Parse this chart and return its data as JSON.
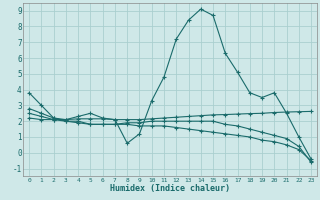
{
  "xlabel": "Humidex (Indice chaleur)",
  "background_color": "#cfe8e8",
  "line_color": "#1a6b6b",
  "grid_color": "#aacfcf",
  "xlim": [
    -0.5,
    23.5
  ],
  "ylim": [
    -1.5,
    9.5
  ],
  "xticks": [
    0,
    1,
    2,
    3,
    4,
    5,
    6,
    7,
    8,
    9,
    10,
    11,
    12,
    13,
    14,
    15,
    16,
    17,
    18,
    19,
    20,
    21,
    22,
    23
  ],
  "yticks": [
    -1,
    0,
    1,
    2,
    3,
    4,
    5,
    6,
    7,
    8,
    9
  ],
  "series": [
    {
      "x": [
        0,
        1,
        2,
        3,
        4,
        5,
        6,
        7,
        8,
        9,
        10,
        11,
        12,
        13,
        14,
        15,
        16,
        17,
        18,
        19,
        20,
        21,
        22,
        23
      ],
      "y": [
        3.8,
        3.0,
        2.2,
        2.1,
        2.3,
        2.5,
        2.2,
        2.1,
        0.6,
        1.2,
        3.3,
        4.8,
        7.2,
        8.4,
        9.1,
        8.7,
        6.3,
        5.1,
        3.8,
        3.5,
        3.8,
        2.5,
        1.0,
        -0.4
      ]
    },
    {
      "x": [
        0,
        1,
        2,
        3,
        4,
        5,
        6,
        7,
        8,
        9,
        10,
        11,
        12,
        13,
        14,
        15,
        16,
        17,
        18,
        19,
        20,
        21,
        22,
        23
      ],
      "y": [
        2.8,
        2.5,
        2.2,
        2.0,
        2.0,
        1.8,
        1.8,
        1.8,
        1.9,
        1.9,
        2.0,
        2.0,
        2.0,
        2.0,
        2.0,
        2.0,
        1.8,
        1.7,
        1.5,
        1.3,
        1.1,
        0.9,
        0.4,
        -0.6
      ]
    },
    {
      "x": [
        0,
        1,
        2,
        3,
        4,
        5,
        6,
        7,
        8,
        9,
        10,
        11,
        12,
        13,
        14,
        15,
        16,
        17,
        18,
        19,
        20,
        21,
        22,
        23
      ],
      "y": [
        2.5,
        2.3,
        2.1,
        2.0,
        1.9,
        1.8,
        1.8,
        1.8,
        1.8,
        1.7,
        1.7,
        1.7,
        1.6,
        1.5,
        1.4,
        1.3,
        1.2,
        1.1,
        1.0,
        0.8,
        0.7,
        0.5,
        0.2,
        -0.5
      ]
    },
    {
      "x": [
        0,
        1,
        2,
        3,
        4,
        5,
        6,
        7,
        8,
        9,
        10,
        11,
        12,
        13,
        14,
        15,
        16,
        17,
        18,
        19,
        20,
        21,
        22,
        23
      ],
      "y": [
        2.2,
        2.1,
        2.1,
        2.1,
        2.15,
        2.15,
        2.15,
        2.1,
        2.1,
        2.1,
        2.15,
        2.2,
        2.25,
        2.3,
        2.35,
        2.4,
        2.42,
        2.45,
        2.48,
        2.5,
        2.55,
        2.58,
        2.6,
        2.62
      ]
    }
  ]
}
